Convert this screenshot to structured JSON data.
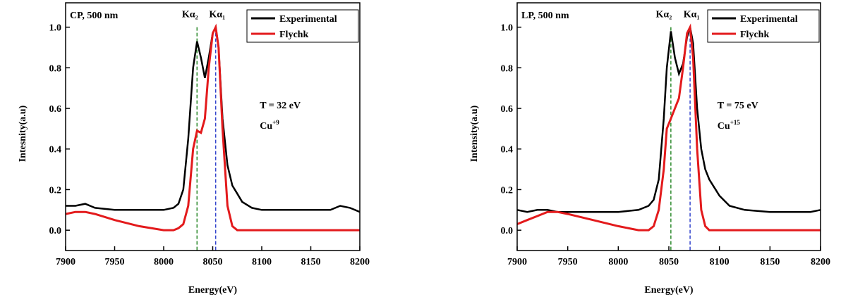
{
  "chart_data": [
    {
      "type": "line",
      "annotation": "CP, 500 nm",
      "xlabel": "Energy(eV)",
      "ylabel": "Intesnity(a.u)",
      "x": [
        7900,
        7910,
        7920,
        7930,
        7950,
        7975,
        8000,
        8010,
        8015,
        8020,
        8025,
        8030,
        8034,
        8038,
        8042,
        8046,
        8050,
        8053,
        8056,
        8060,
        8065,
        8070,
        8075,
        8080,
        8090,
        8100,
        8125,
        8150,
        8170,
        8180,
        8190,
        8200
      ],
      "series": [
        {
          "name": "Experimental",
          "color": "#000000",
          "values": [
            0.12,
            0.12,
            0.13,
            0.11,
            0.1,
            0.1,
            0.1,
            0.11,
            0.13,
            0.2,
            0.45,
            0.8,
            0.93,
            0.85,
            0.75,
            0.85,
            0.97,
            1.0,
            0.9,
            0.55,
            0.32,
            0.22,
            0.18,
            0.14,
            0.11,
            0.1,
            0.1,
            0.1,
            0.1,
            0.12,
            0.11,
            0.09
          ]
        },
        {
          "name": "Flychk",
          "color": "#e31a1c",
          "values": [
            0.08,
            0.09,
            0.09,
            0.08,
            0.05,
            0.02,
            0.0,
            0.0,
            0.01,
            0.03,
            0.12,
            0.4,
            0.49,
            0.48,
            0.55,
            0.8,
            0.97,
            1.0,
            0.9,
            0.5,
            0.12,
            0.02,
            0.0,
            0.0,
            0.0,
            0.0,
            0.0,
            0.0,
            0.0,
            0.0,
            0.0,
            0.0
          ]
        }
      ],
      "peaks": [
        {
          "x": 8034,
          "color": "#2e8b2e",
          "label": "Kα",
          "sub": "2"
        },
        {
          "x": 8053,
          "color": "#3344cc",
          "label": "Kα",
          "sub": "1"
        }
      ],
      "temperature": "T = 32 eV",
      "ion": "Cu",
      "ion_charge": "+9",
      "xlim": [
        7900,
        8200
      ],
      "xticks": [
        7900,
        7950,
        8000,
        8050,
        8100,
        8150,
        8200
      ],
      "ylim": [
        -0.1,
        1.12
      ],
      "yticks": [
        {
          "value": 0,
          "label": "0.0"
        },
        0.2,
        0.4,
        0.6,
        0.8,
        {
          "value": 1,
          "label": "1.0"
        }
      ],
      "legend": "upper right"
    },
    {
      "type": "line",
      "annotation": "LP, 500 nm",
      "xlabel": "Energy(eV)",
      "ylabel": "Intensity(a.u)",
      "x": [
        7900,
        7910,
        7920,
        7930,
        7940,
        7950,
        7975,
        8000,
        8020,
        8030,
        8035,
        8040,
        8045,
        8048,
        8052,
        8056,
        8060,
        8064,
        8068,
        8071,
        8074,
        8078,
        8082,
        8086,
        8090,
        8100,
        8110,
        8125,
        8150,
        8175,
        8190,
        8200
      ],
      "series": [
        {
          "name": "Experimental",
          "color": "#000000",
          "values": [
            0.1,
            0.09,
            0.1,
            0.1,
            0.09,
            0.09,
            0.09,
            0.09,
            0.1,
            0.12,
            0.15,
            0.25,
            0.55,
            0.8,
            0.98,
            0.85,
            0.77,
            0.82,
            0.95,
            1.0,
            0.92,
            0.6,
            0.4,
            0.3,
            0.25,
            0.17,
            0.12,
            0.1,
            0.09,
            0.09,
            0.09,
            0.1
          ]
        },
        {
          "name": "Flychk",
          "color": "#e31a1c",
          "values": [
            0.03,
            0.05,
            0.07,
            0.09,
            0.09,
            0.08,
            0.05,
            0.02,
            0.0,
            0.0,
            0.02,
            0.1,
            0.3,
            0.5,
            0.55,
            0.6,
            0.65,
            0.8,
            0.97,
            1.0,
            0.85,
            0.4,
            0.1,
            0.02,
            0.0,
            0.0,
            0.0,
            0.0,
            0.0,
            0.0,
            0.0,
            0.0
          ]
        }
      ],
      "peaks": [
        {
          "x": 8052,
          "color": "#2e8b2e",
          "label": "Kα",
          "sub": "2"
        },
        {
          "x": 8071,
          "color": "#3344cc",
          "label": "Kα",
          "sub": "1"
        }
      ],
      "temperature": "T = 75 eV",
      "ion": "Cu",
      "ion_charge": "+15",
      "xlim": [
        7900,
        8200
      ],
      "xticks": [
        7900,
        7950,
        8000,
        8050,
        8100,
        8150,
        8200
      ],
      "ylim": [
        -0.1,
        1.12
      ],
      "yticks": [
        {
          "value": 0,
          "label": "0.0"
        },
        0.2,
        0.4,
        0.6,
        0.8,
        {
          "value": 1,
          "label": "1.0"
        }
      ],
      "legend": "upper right"
    }
  ]
}
